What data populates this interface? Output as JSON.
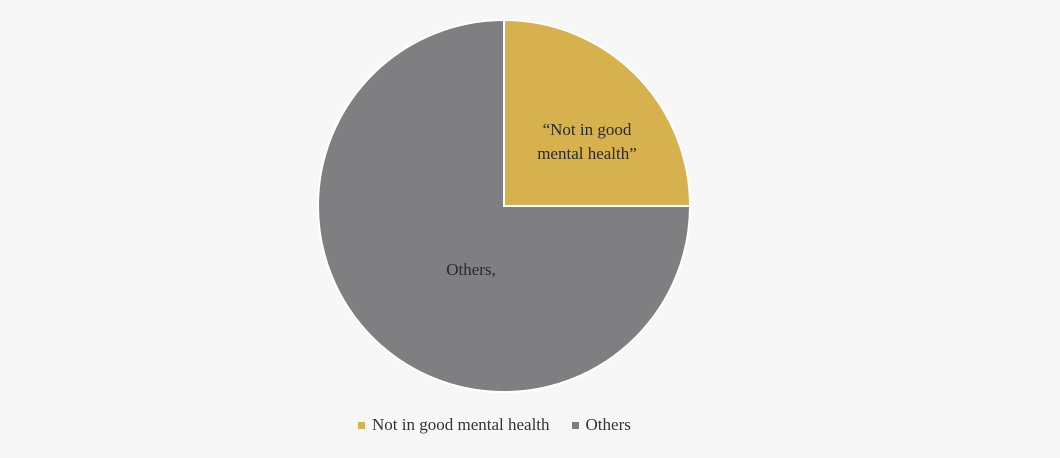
{
  "chart_data": {
    "type": "pie",
    "title": "",
    "slices": [
      {
        "name": "Not in good mental health",
        "value": 25,
        "color": "#d6b14e"
      },
      {
        "name": "Others",
        "value": 75,
        "color": "#7f7e80"
      }
    ],
    "data_labels": {
      "yellow_line1": "“Not in good",
      "yellow_line2": "mental health”",
      "gray": "Others,"
    },
    "legend": {
      "position": "bottom",
      "items": [
        {
          "label": "Not in good mental health",
          "color": "#d6b14e"
        },
        {
          "label": "Others",
          "color": "#7f7e80"
        }
      ]
    }
  }
}
